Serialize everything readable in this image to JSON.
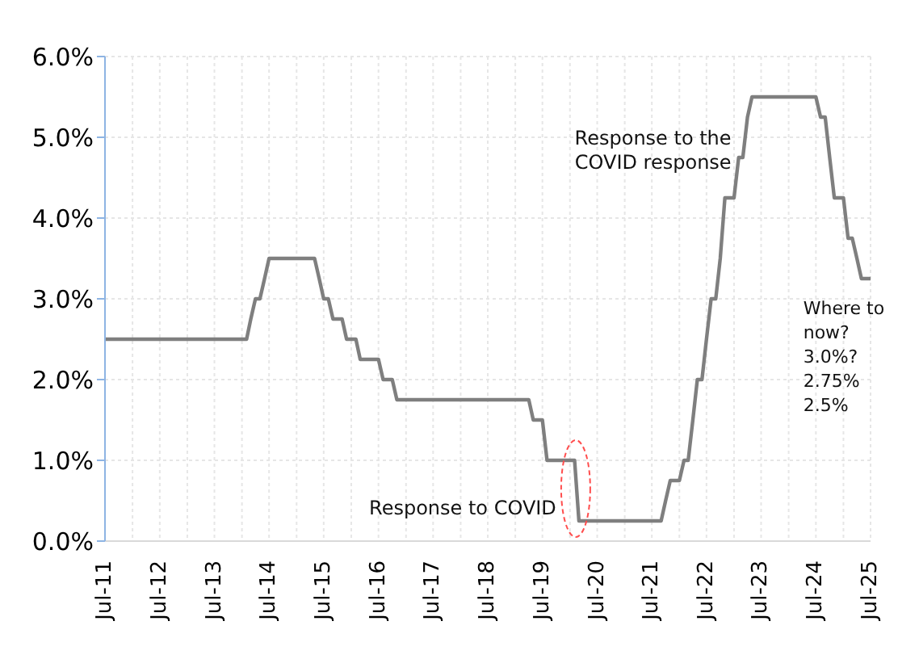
{
  "chart_data": {
    "type": "line",
    "x": [
      "2011-07",
      "2014-02",
      "2014-03",
      "2014-04",
      "2014-05",
      "2014-06",
      "2014-07",
      "2015-05",
      "2015-06",
      "2015-07",
      "2015-08",
      "2015-09",
      "2015-11",
      "2015-12",
      "2016-02",
      "2016-03",
      "2016-07",
      "2016-08",
      "2016-10",
      "2016-11",
      "2019-04",
      "2019-05",
      "2019-07",
      "2019-08",
      "2020-02",
      "2020-03",
      "2021-09",
      "2021-10",
      "2021-11",
      "2022-01",
      "2022-02",
      "2022-03",
      "2022-04",
      "2022-05",
      "2022-06",
      "2022-07",
      "2022-08",
      "2022-09",
      "2022-10",
      "2022-11",
      "2023-01",
      "2023-02",
      "2023-03",
      "2023-04",
      "2023-05",
      "2024-07",
      "2024-08",
      "2024-09",
      "2024-10",
      "2024-11",
      "2025-01",
      "2025-02",
      "2025-03",
      "2025-04",
      "2025-05",
      "2025-07"
    ],
    "series": [
      {
        "color": "#7f7f7f",
        "values": [
          2.5,
          2.5,
          2.75,
          3.0,
          3.0,
          3.25,
          3.5,
          3.5,
          3.25,
          3.0,
          3.0,
          2.75,
          2.75,
          2.5,
          2.5,
          2.25,
          2.25,
          2.0,
          2.0,
          1.75,
          1.75,
          1.5,
          1.5,
          1.0,
          1.0,
          0.25,
          0.25,
          0.5,
          0.75,
          0.75,
          1.0,
          1.0,
          1.5,
          2.0,
          2.0,
          2.5,
          3.0,
          3.0,
          3.5,
          4.25,
          4.25,
          4.75,
          4.75,
          5.25,
          5.5,
          5.5,
          5.25,
          5.25,
          4.75,
          4.25,
          4.25,
          3.75,
          3.75,
          3.5,
          3.25,
          3.25
        ]
      }
    ],
    "xlim": [
      "2011-07",
      "2025-07"
    ],
    "xticks": [
      {
        "value": "2011-07",
        "label": "Jul-11"
      },
      {
        "value": "2012-01",
        "label": null
      },
      {
        "value": "2012-07",
        "label": "Jul-12"
      },
      {
        "value": "2013-01",
        "label": null
      },
      {
        "value": "2013-07",
        "label": "Jul-13"
      },
      {
        "value": "2014-01",
        "label": null
      },
      {
        "value": "2014-07",
        "label": "Jul-14"
      },
      {
        "value": "2015-01",
        "label": null
      },
      {
        "value": "2015-07",
        "label": "Jul-15"
      },
      {
        "value": "2016-01",
        "label": null
      },
      {
        "value": "2016-07",
        "label": "Jul-16"
      },
      {
        "value": "2017-01",
        "label": null
      },
      {
        "value": "2017-07",
        "label": "Jul-17"
      },
      {
        "value": "2018-01",
        "label": null
      },
      {
        "value": "2018-07",
        "label": "Jul-18"
      },
      {
        "value": "2019-01",
        "label": null
      },
      {
        "value": "2019-07",
        "label": "Jul-19"
      },
      {
        "value": "2020-01",
        "label": null
      },
      {
        "value": "2020-07",
        "label": "Jul-20"
      },
      {
        "value": "2021-01",
        "label": null
      },
      {
        "value": "2021-07",
        "label": "Jul-21"
      },
      {
        "value": "2022-01",
        "label": null
      },
      {
        "value": "2022-07",
        "label": "Jul-22"
      },
      {
        "value": "2023-01",
        "label": null
      },
      {
        "value": "2023-07",
        "label": "Jul-23"
      },
      {
        "value": "2024-01",
        "label": null
      },
      {
        "value": "2024-07",
        "label": "Jul-24"
      },
      {
        "value": "2025-01",
        "label": null
      },
      {
        "value": "2025-07",
        "label": "Jul-25"
      }
    ],
    "ylim": [
      0,
      6
    ],
    "yticks": [
      {
        "value": 0,
        "label": "0.0%"
      },
      {
        "value": 1,
        "label": "1.0%"
      },
      {
        "value": 2,
        "label": "2.0%"
      },
      {
        "value": 3,
        "label": "3.0%"
      },
      {
        "value": 4,
        "label": "4.0%"
      },
      {
        "value": 5,
        "label": "5.0%"
      },
      {
        "value": 6,
        "label": "6.0%"
      }
    ],
    "grid": true,
    "marker": "none",
    "line_style": "solid",
    "annotations": [
      {
        "text": "Response to COVID",
        "x": "2020-03",
        "y": 0.25
      },
      {
        "text": "Response to the\nCOVID response",
        "x": "2022-11",
        "y": 4.25
      },
      {
        "text": "Where to\nnow?\n3.0%?\n2.75%\n2.5%",
        "x": "2025-05",
        "y": 3.25
      }
    ]
  }
}
